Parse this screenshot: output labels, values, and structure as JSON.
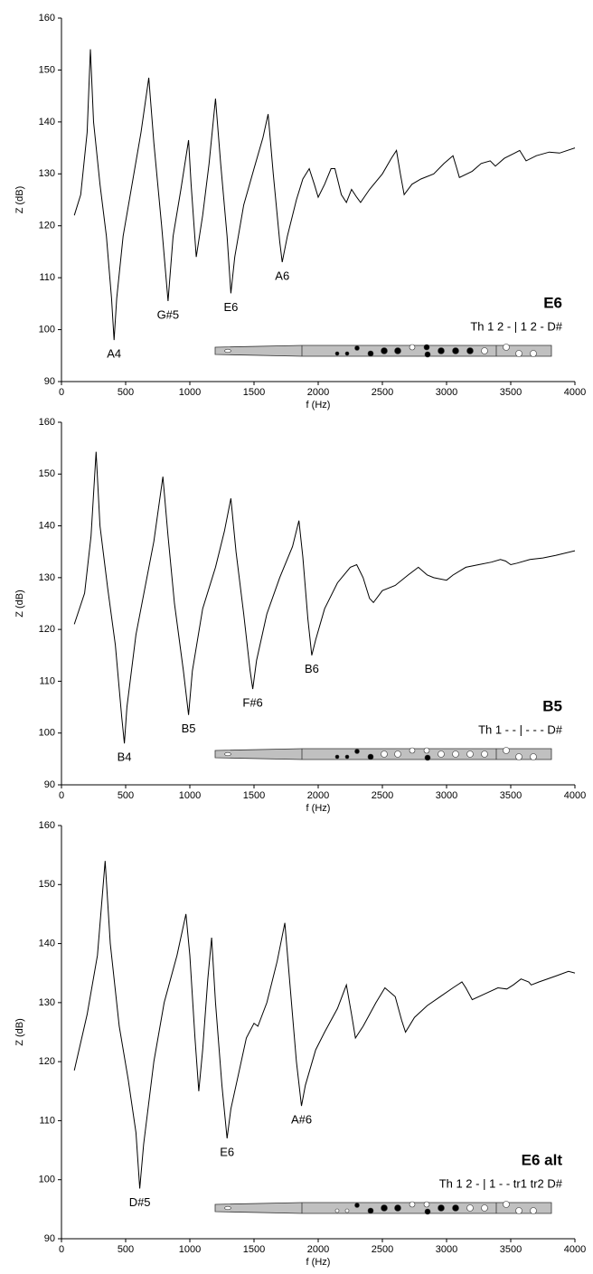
{
  "chart_data": [
    {
      "type": "line",
      "title": "E6",
      "subtitle": "Th 1 2 - | 1 2 - D#",
      "xlabel": "f (Hz)",
      "ylabel": "Z (dB)",
      "color": "#000000",
      "xlim": [
        0,
        4000
      ],
      "ylim": [
        90,
        160
      ],
      "xticks": [
        0,
        500,
        1000,
        1500,
        2000,
        2500,
        3000,
        3500,
        4000
      ],
      "yticks": [
        90,
        100,
        110,
        120,
        130,
        140,
        150,
        160
      ],
      "x": [
        100,
        150,
        200,
        225,
        250,
        300,
        350,
        390,
        410,
        430,
        480,
        550,
        620,
        680,
        720,
        780,
        830,
        870,
        930,
        990,
        1010,
        1050,
        1100,
        1150,
        1200,
        1240,
        1290,
        1320,
        1350,
        1420,
        1500,
        1570,
        1610,
        1650,
        1700,
        1720,
        1760,
        1830,
        1880,
        1930,
        1970,
        2000,
        2050,
        2100,
        2130,
        2180,
        2220,
        2260,
        2300,
        2330,
        2400,
        2500,
        2570,
        2610,
        2640,
        2670,
        2730,
        2800,
        2900,
        2980,
        3050,
        3080,
        3100,
        3200,
        3270,
        3340,
        3380,
        3450,
        3530,
        3570,
        3620,
        3700,
        3800,
        3880,
        4000
      ],
      "values": [
        122,
        126,
        138,
        154,
        140,
        128,
        118,
        106,
        98,
        106,
        118,
        128,
        138,
        148.5,
        136,
        120,
        105.5,
        118,
        127,
        136.5,
        128,
        114,
        122,
        132,
        144.5,
        132,
        118,
        107,
        114,
        124,
        131,
        137,
        141.5,
        130,
        117,
        113,
        118,
        125,
        129,
        131,
        128,
        125.5,
        128,
        131,
        131,
        126,
        124.5,
        127,
        125.5,
        124.5,
        127,
        130,
        133,
        134.5,
        130,
        126,
        128,
        129,
        130,
        132,
        133.5,
        131,
        129.3,
        130.5,
        132,
        132.5,
        131.5,
        133,
        134,
        134.5,
        132.5,
        133.5,
        134.2,
        134,
        135
      ],
      "annotations": [
        {
          "text": "A4",
          "x": 410
        },
        {
          "text": "G#5",
          "x": 830
        },
        {
          "text": "E6",
          "x": 1320
        },
        {
          "text": "A6",
          "x": 1720
        }
      ]
    },
    {
      "type": "line",
      "title": "B5",
      "subtitle": "Th 1 - - | - - - D#",
      "xlabel": "f (Hz)",
      "ylabel": "Z (dB)",
      "color": "#000000",
      "xlim": [
        0,
        4000
      ],
      "ylim": [
        90,
        160
      ],
      "xticks": [
        0,
        500,
        1000,
        1500,
        2000,
        2500,
        3000,
        3500,
        4000
      ],
      "yticks": [
        90,
        100,
        110,
        120,
        130,
        140,
        150,
        160
      ],
      "x": [
        100,
        180,
        230,
        270,
        300,
        360,
        420,
        470,
        490,
        510,
        580,
        650,
        720,
        790,
        830,
        880,
        950,
        990,
        1020,
        1100,
        1200,
        1270,
        1320,
        1360,
        1420,
        1470,
        1490,
        1520,
        1600,
        1700,
        1800,
        1850,
        1880,
        1920,
        1950,
        1980,
        2050,
        2150,
        2250,
        2300,
        2350,
        2400,
        2430,
        2500,
        2600,
        2700,
        2780,
        2850,
        2900,
        3000,
        3050,
        3150,
        3250,
        3350,
        3420,
        3460,
        3500,
        3550,
        3650,
        3750,
        3850,
        4000
      ],
      "values": [
        121,
        127,
        138,
        154.3,
        140,
        128,
        117,
        103,
        98,
        105,
        119,
        128,
        137,
        149.5,
        138,
        125,
        112,
        103.5,
        112,
        124,
        132,
        139,
        145.3,
        135,
        123,
        112,
        108.5,
        114,
        123,
        130,
        136,
        141,
        134,
        122,
        115,
        118,
        124,
        129,
        132,
        132.5,
        130,
        126,
        125.2,
        127.5,
        128.5,
        130.5,
        132,
        130.5,
        130,
        129.5,
        130.5,
        132,
        132.5,
        133,
        133.5,
        133.2,
        132.5,
        132.8,
        133.5,
        133.8,
        134.3,
        135.2
      ],
      "annotations": [
        {
          "text": "B4",
          "x": 490
        },
        {
          "text": "B5",
          "x": 990
        },
        {
          "text": "F#6",
          "x": 1490
        },
        {
          "text": "B6",
          "x": 1950
        }
      ]
    },
    {
      "type": "line",
      "title": "E6 alt",
      "subtitle": "Th 1 2 - | 1 - - tr1 tr2 D#",
      "xlabel": "f (Hz)",
      "ylabel": "Z (dB)",
      "color": "#000000",
      "xlim": [
        0,
        4000
      ],
      "ylim": [
        90,
        160
      ],
      "xticks": [
        0,
        500,
        1000,
        1500,
        2000,
        2500,
        3000,
        3500,
        4000
      ],
      "yticks": [
        90,
        100,
        110,
        120,
        130,
        140,
        150,
        160
      ],
      "x": [
        100,
        200,
        280,
        340,
        380,
        450,
        520,
        580,
        610,
        640,
        720,
        800,
        900,
        970,
        1000,
        1040,
        1070,
        1100,
        1140,
        1170,
        1200,
        1250,
        1290,
        1320,
        1380,
        1440,
        1500,
        1530,
        1600,
        1680,
        1740,
        1780,
        1830,
        1870,
        1900,
        1980,
        2050,
        2150,
        2220,
        2260,
        2290,
        2350,
        2450,
        2520,
        2600,
        2650,
        2680,
        2750,
        2850,
        2950,
        3050,
        3120,
        3150,
        3200,
        3300,
        3400,
        3470,
        3520,
        3580,
        3640,
        3660,
        3720,
        3850,
        3950,
        4000
      ],
      "values": [
        118.5,
        128,
        138,
        154,
        140,
        126,
        117,
        108,
        98.5,
        106,
        120,
        130,
        138,
        145,
        138,
        124,
        115,
        122,
        134,
        141,
        130,
        116,
        107,
        112,
        118,
        124,
        126.5,
        126,
        130,
        137,
        143.5,
        133,
        120,
        112.5,
        116,
        122,
        125,
        129,
        133,
        128,
        124,
        126,
        130,
        132.5,
        131,
        127,
        125,
        127.5,
        129.5,
        131,
        132.5,
        133.5,
        132.5,
        130.5,
        131.5,
        132.5,
        132.3,
        133,
        134,
        133.5,
        133,
        133.5,
        134.5,
        135.3,
        135
      ],
      "annotations": [
        {
          "text": "D#5",
          "x": 610
        },
        {
          "text": "E6",
          "x": 1290
        },
        {
          "text": "A#6",
          "x": 1870
        }
      ]
    }
  ]
}
